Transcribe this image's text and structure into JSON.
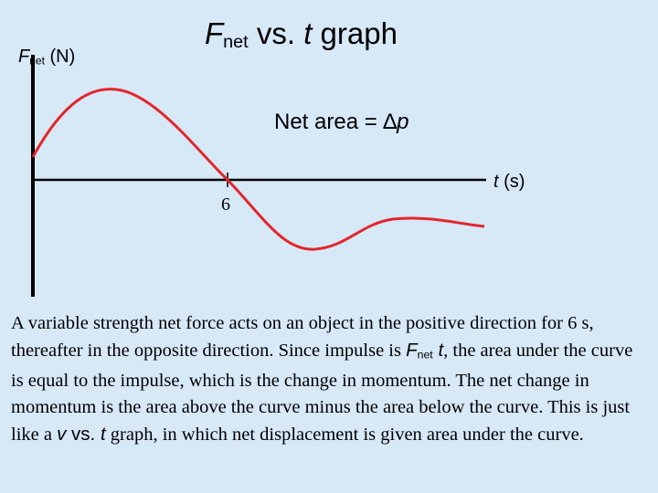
{
  "title": {
    "symbol": "F",
    "sub": "net",
    "vs": "vs.",
    "t": "t",
    "graph": "graph"
  },
  "y_axis_label": {
    "symbol": "F",
    "sub": "net",
    "unit": "(N)"
  },
  "x_axis_label": {
    "symbol": "t",
    "unit": "(s)"
  },
  "annotation": {
    "text": "Net area =",
    "delta": "∆",
    "p": "p"
  },
  "tick_label": "6",
  "paragraph": {
    "part1": "A variable strength net force acts on an object in the positive direction for 6 s, thereafter in the opposite direction.  Since impulse is",
    "f": "F",
    "sub": "net",
    "t1": "t",
    "part2": ", the area under the curve is equal to the impulse, which is the change in momentum. The net change in momentum is the area above the curve minus the area below the curve.  This is just like a",
    "v": "v",
    "vs": "vs.",
    "t2": "t",
    "part3": "graph, in which net displacement is given area under the curve."
  }
}
